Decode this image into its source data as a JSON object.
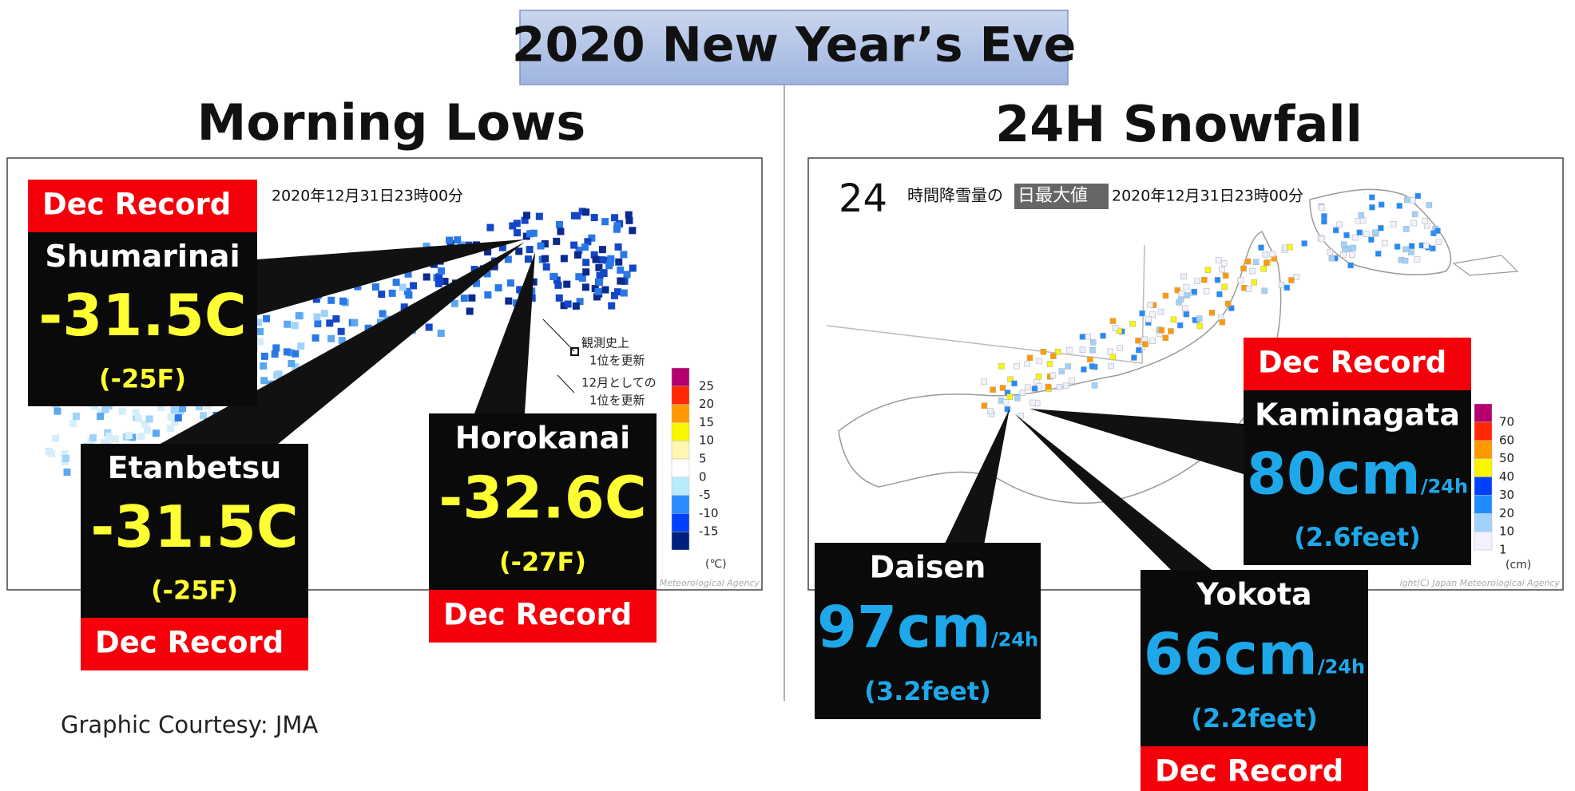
{
  "title": "2020 New Year’s Eve",
  "panels": [
    {
      "heading": "Morning Lows",
      "map_timestamp": "2020年12月31日23時00分",
      "markers": [
        [
          "観測史上",
          "1位を更新"
        ],
        [
          "12月としての",
          "1位を更新"
        ]
      ],
      "legend": {
        "labels": [
          "25",
          "20",
          "15",
          "10",
          "5",
          "0",
          "-5",
          "-10",
          "-15"
        ],
        "unit": "(℃)"
      },
      "copyright": "Meteorological Agency",
      "callouts": [
        {
          "badge": "Dec Record",
          "station": "Shumarinai",
          "value": "-31.5C",
          "secondary": "(-25F)"
        },
        {
          "badge": "Dec Record",
          "station": "Etanbetsu",
          "value": "-31.5C",
          "secondary": "(-25F)"
        },
        {
          "badge": "Dec Record",
          "station": "Horokanai",
          "value": "-32.6C",
          "secondary": "(-27F)"
        }
      ]
    },
    {
      "heading": "24H Snowfall",
      "map_title_prefix": "24",
      "map_title": "時間降雪量の",
      "map_title_highlight": "日最大値",
      "map_timestamp": "2020年12月31日23時00分",
      "legend": {
        "labels": [
          "70",
          "60",
          "50",
          "40",
          "30",
          "20",
          "10",
          "1"
        ],
        "unit": "(cm)"
      },
      "copyright": "ight(C) Japan Meteorological Agency",
      "callouts": [
        {
          "badge": "Dec Record",
          "station": "Kaminagata",
          "value": "80cm",
          "rate": "/24h",
          "secondary": "(2.6feet)"
        },
        {
          "station": "Daisen",
          "value": "97cm",
          "rate": "/24h",
          "secondary": "(3.2feet)"
        },
        {
          "badge": "Dec Record",
          "station": "Yokota",
          "value": "66cm",
          "rate": "/24h",
          "secondary": "(2.2feet)"
        }
      ]
    }
  ],
  "credit": "Graphic Courtesy: JMA"
}
